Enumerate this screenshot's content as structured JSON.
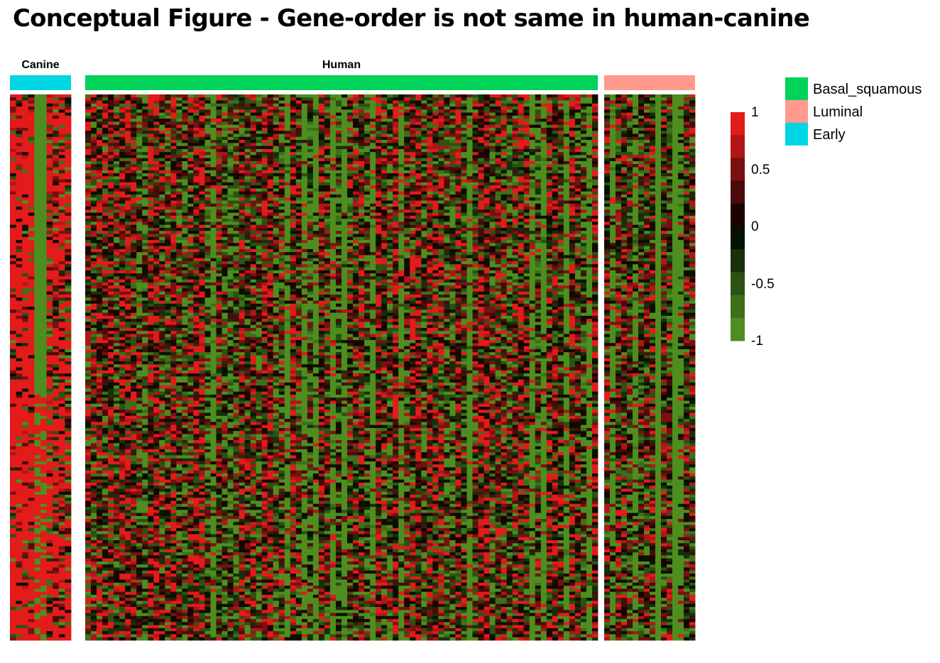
{
  "title": "Conceptual Figure - Gene-order is not same in human-canine",
  "chart_data": {
    "type": "heatmap",
    "title": "Conceptual Figure - Gene-order is not same in human-canine",
    "groups": [
      {
        "label": "Canine",
        "annotation": "Early",
        "color": "#00D5E3"
      },
      {
        "label": "Human",
        "annotation": "Basal_squamous",
        "color": "#00D25A"
      },
      {
        "label": "",
        "annotation": "Luminal",
        "color": "#FF9A8C"
      }
    ],
    "legend": [
      {
        "label": "Basal_squamous",
        "color": "#00D25A"
      },
      {
        "label": "Luminal",
        "color": "#FF9A8C"
      },
      {
        "label": "Early",
        "color": "#00D5E3"
      }
    ],
    "color_scale": {
      "min": -1,
      "max": 1,
      "ticks": [
        "1",
        "0.5",
        "0",
        "-0.5",
        "-1"
      ],
      "stops": [
        "#E31B1B",
        "#B01616",
        "#7A1010",
        "#4A0A0A",
        "#1C0303",
        "#061200",
        "#17300A",
        "#2B5212",
        "#3D7019",
        "#4E8E20"
      ]
    },
    "values": "dense conceptual matrix of scaled expression values in [-1, 1]; individual cells not labeled"
  }
}
